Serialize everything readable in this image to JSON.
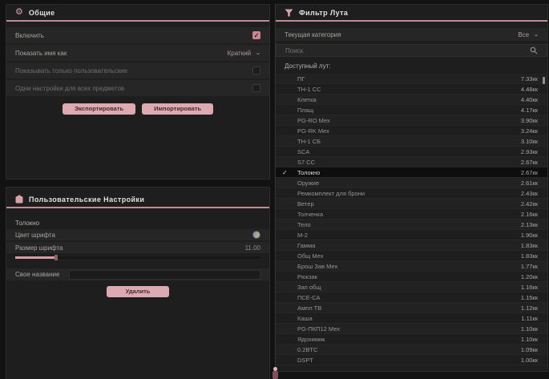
{
  "accent_color": "#d8a2a9",
  "panel_background": "#1e1e1e",
  "general_panel": {
    "title": "Общие",
    "icon": "gear-icon",
    "rows": [
      {
        "label": "Включить",
        "control": "checkbox",
        "checked": true,
        "dim": false
      },
      {
        "label": "Показать имя как",
        "control": "dropdown",
        "value": "Краткий",
        "dim": false
      },
      {
        "label": "Показывать только пользовательские",
        "control": "checkbox",
        "checked": false,
        "dim": true
      },
      {
        "label": "Одни настройки для всех предметов",
        "control": "checkbox",
        "checked": false,
        "dim": true
      }
    ],
    "buttons": {
      "export": "Экспортировать",
      "import": "Импортировать"
    }
  },
  "custom_panel": {
    "title": "Пользовательские Настройки",
    "icon": "backpack-icon",
    "item_name": "Толокно",
    "font_color_label": "Цвет шрифта",
    "font_size_label": "Размер шрифта",
    "font_size_value": "11.00",
    "custom_name_label": "Свое название",
    "delete_button": "Удалить"
  },
  "filter_panel": {
    "title": "Фильтр Лута",
    "icon": "funnel-icon",
    "category_label": "Текущая категория",
    "category_value": "Все",
    "search_placeholder": "Поиск",
    "list_label": "Доступный лут:",
    "items": [
      {
        "name": "ПГ",
        "value": "7.33кк",
        "selected": false
      },
      {
        "name": "ТН-1 СС",
        "value": "4.48кк",
        "selected": false
      },
      {
        "name": "Клетка",
        "value": "4.40кк",
        "selected": false
      },
      {
        "name": "Плащ",
        "value": "4.17кк",
        "selected": false
      },
      {
        "name": "PG-RO Мех",
        "value": "3.90кк",
        "selected": false
      },
      {
        "name": "PG-RK Мех",
        "value": "3.24кк",
        "selected": false
      },
      {
        "name": "ТН-1 СБ",
        "value": "3.10кк",
        "selected": false
      },
      {
        "name": "SCA",
        "value": "2.93кк",
        "selected": false
      },
      {
        "name": "S7 СС",
        "value": "2.67кк",
        "selected": false
      },
      {
        "name": "Толокно",
        "value": "2.67кк",
        "selected": true
      },
      {
        "name": "Оружие",
        "value": "2.61кк",
        "selected": false
      },
      {
        "name": "Ремкомплект для брони",
        "value": "2.43кк",
        "selected": false
      },
      {
        "name": "Ветер",
        "value": "2.42кк",
        "selected": false
      },
      {
        "name": "Толченка",
        "value": "2.16кк",
        "selected": false
      },
      {
        "name": "Тело",
        "value": "2.13кк",
        "selected": false
      },
      {
        "name": "М-2",
        "value": "1.90кк",
        "selected": false
      },
      {
        "name": "Гамма",
        "value": "1.83кк",
        "selected": false
      },
      {
        "name": "Общ Мех",
        "value": "1.83кк",
        "selected": false
      },
      {
        "name": "Брош Зав Мех",
        "value": "1.77кк",
        "selected": false
      },
      {
        "name": "Рюкзак",
        "value": "1.20кк",
        "selected": false
      },
      {
        "name": "Зап общ",
        "value": "1.16кк",
        "selected": false
      },
      {
        "name": "ПСЕ-СА",
        "value": "1.15кк",
        "selected": false
      },
      {
        "name": "Ампл ТВ",
        "value": "1.12кк",
        "selected": false
      },
      {
        "name": "Каша",
        "value": "1.11кк",
        "selected": false
      },
      {
        "name": "PG-ПКП12 Мех",
        "value": "1.10кк",
        "selected": false
      },
      {
        "name": "Ядохимик",
        "value": "1.10кк",
        "selected": false
      },
      {
        "name": "0.2BTC",
        "value": "1.09кк",
        "selected": false
      },
      {
        "name": "DSPT",
        "value": "1.00кк",
        "selected": false
      }
    ]
  }
}
